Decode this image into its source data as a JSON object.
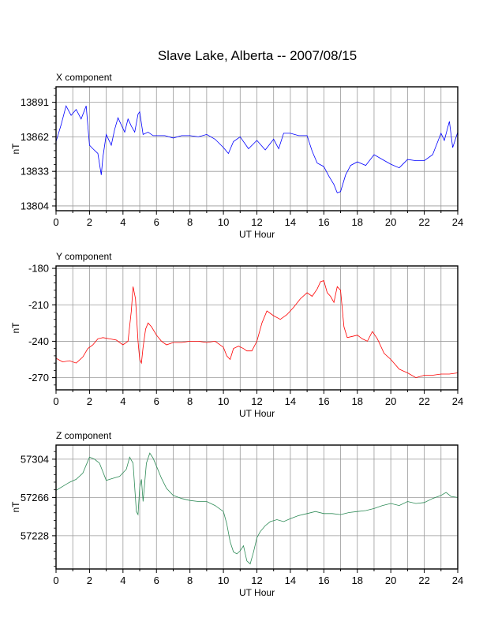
{
  "title": "Slave Lake, Alberta -- 2007/08/15",
  "chart_data": [
    {
      "type": "line",
      "panel_label": "X component",
      "xlabel": "UT Hour",
      "ylabel": "nT",
      "xlim": [
        0,
        24
      ],
      "ylim": [
        13800,
        13904
      ],
      "x_ticks": [
        0,
        2,
        4,
        6,
        8,
        10,
        12,
        14,
        16,
        18,
        20,
        22,
        24
      ],
      "y_ticks": [
        13804,
        13833,
        13862,
        13891
      ],
      "grid": true,
      "color": "#0000ff",
      "x": [
        0,
        0.3,
        0.6,
        0.9,
        1.2,
        1.5,
        1.8,
        2.0,
        2.2,
        2.5,
        2.7,
        2.8,
        3.0,
        3.3,
        3.5,
        3.7,
        3.9,
        4.1,
        4.3,
        4.5,
        4.7,
        4.9,
        5.0,
        5.2,
        5.5,
        5.8,
        6.0,
        6.5,
        7.0,
        7.5,
        8.0,
        8.5,
        9.0,
        9.5,
        10.0,
        10.3,
        10.6,
        11.0,
        11.5,
        12.0,
        12.5,
        13.0,
        13.3,
        13.6,
        14.0,
        14.5,
        15.0,
        15.3,
        15.6,
        16.0,
        16.3,
        16.6,
        16.8,
        17.0,
        17.3,
        17.6,
        18.0,
        18.5,
        19.0,
        19.5,
        20.0,
        20.5,
        21.0,
        21.5,
        22.0,
        22.5,
        23.0,
        23.2,
        23.5,
        23.7,
        24.0
      ],
      "values": [
        13858,
        13872,
        13888,
        13880,
        13885,
        13877,
        13888,
        13855,
        13852,
        13848,
        13830,
        13845,
        13864,
        13855,
        13868,
        13878,
        13872,
        13866,
        13877,
        13871,
        13866,
        13881,
        13883,
        13864,
        13866,
        13863,
        13863,
        13863,
        13861,
        13863,
        13863,
        13862,
        13864,
        13860,
        13853,
        13848,
        13858,
        13862,
        13852,
        13859,
        13851,
        13860,
        13852,
        13865,
        13865,
        13863,
        13863,
        13850,
        13840,
        13837,
        13829,
        13822,
        13815,
        13816,
        13830,
        13838,
        13841,
        13838,
        13847,
        13843,
        13839,
        13836,
        13843,
        13842,
        13842,
        13847,
        13865,
        13859,
        13875,
        13853,
        13866
      ]
    },
    {
      "type": "line",
      "panel_label": "Y component",
      "xlabel": "UT Hour",
      "ylabel": "nT",
      "xlim": [
        0,
        24
      ],
      "ylim": [
        -280,
        -178
      ],
      "x_ticks": [
        0,
        2,
        4,
        6,
        8,
        10,
        12,
        14,
        16,
        18,
        20,
        22,
        24
      ],
      "y_ticks": [
        -180,
        -210,
        -240,
        -270
      ],
      "grid": true,
      "color": "#ff0000",
      "x": [
        0,
        0.4,
        0.8,
        1.2,
        1.6,
        1.9,
        2.2,
        2.5,
        2.8,
        3.2,
        3.6,
        4.0,
        4.3,
        4.5,
        4.6,
        4.75,
        4.9,
        5.0,
        5.1,
        5.2,
        5.35,
        5.5,
        5.7,
        6.0,
        6.3,
        6.6,
        7.0,
        7.5,
        8.0,
        8.5,
        9.0,
        9.5,
        10.0,
        10.2,
        10.4,
        10.6,
        10.9,
        11.2,
        11.4,
        11.7,
        12.0,
        12.3,
        12.6,
        13.0,
        13.4,
        13.8,
        14.2,
        14.6,
        15.0,
        15.3,
        15.6,
        15.8,
        16.0,
        16.2,
        16.4,
        16.6,
        16.8,
        17.0,
        17.2,
        17.4,
        17.7,
        18.0,
        18.3,
        18.6,
        18.9,
        19.2,
        19.6,
        20.0,
        20.5,
        21.0,
        21.5,
        22.0,
        22.5,
        23.0,
        23.5,
        24.0
      ],
      "values": [
        -254,
        -257,
        -256,
        -258,
        -253,
        -246,
        -243,
        -238,
        -237,
        -238,
        -239,
        -243,
        -240,
        -215,
        -195,
        -205,
        -240,
        -255,
        -258,
        -245,
        -230,
        -225,
        -228,
        -235,
        -240,
        -243,
        -241,
        -241,
        -240,
        -240,
        -241,
        -240,
        -245,
        -252,
        -255,
        -246,
        -244,
        -246,
        -248,
        -248,
        -240,
        -225,
        -215,
        -219,
        -222,
        -218,
        -212,
        -205,
        -200,
        -203,
        -197,
        -191,
        -190,
        -200,
        -203,
        -208,
        -195,
        -198,
        -228,
        -237,
        -236,
        -235,
        -238,
        -240,
        -232,
        -238,
        -250,
        -255,
        -263,
        -266,
        -270,
        -268,
        -268,
        -267,
        -267,
        -266
      ]
    },
    {
      "type": "line",
      "panel_label": "Z component",
      "xlabel": "UT Hour",
      "ylabel": "nT",
      "xlim": [
        0,
        24
      ],
      "ylim": [
        57195,
        57318
      ],
      "x_ticks": [
        0,
        2,
        4,
        6,
        8,
        10,
        12,
        14,
        16,
        18,
        20,
        22,
        24
      ],
      "y_ticks": [
        57228,
        57266,
        57304
      ],
      "grid": true,
      "color": "#2e8b57",
      "x": [
        0,
        0.4,
        0.8,
        1.2,
        1.6,
        2.0,
        2.3,
        2.6,
        3.0,
        3.4,
        3.8,
        4.2,
        4.4,
        4.6,
        4.8,
        4.9,
        5.0,
        5.1,
        5.2,
        5.4,
        5.6,
        5.8,
        6.0,
        6.3,
        6.6,
        7.0,
        7.5,
        8.0,
        8.5,
        9.0,
        9.5,
        10.0,
        10.2,
        10.4,
        10.6,
        10.8,
        11.0,
        11.2,
        11.4,
        11.6,
        11.8,
        12.0,
        12.2,
        12.5,
        12.8,
        13.2,
        13.6,
        14.0,
        14.5,
        15.0,
        15.5,
        16.0,
        16.5,
        17.0,
        17.5,
        18.0,
        18.5,
        19.0,
        19.5,
        20.0,
        20.5,
        21.0,
        21.5,
        22.0,
        22.5,
        23.0,
        23.3,
        23.6,
        24.0
      ],
      "values": [
        57273,
        57277,
        57281,
        57284,
        57290,
        57306,
        57304,
        57300,
        57283,
        57285,
        57287,
        57294,
        57306,
        57300,
        57252,
        57249,
        57276,
        57284,
        57262,
        57300,
        57310,
        57305,
        57297,
        57285,
        57275,
        57268,
        57265,
        57263,
        57262,
        57262,
        57258,
        57252,
        57240,
        57222,
        57212,
        57210,
        57213,
        57218,
        57203,
        57200,
        57212,
        57226,
        57232,
        57238,
        57242,
        57244,
        57242,
        57245,
        57248,
        57250,
        57252,
        57250,
        57250,
        57249,
        57251,
        57252,
        57253,
        57255,
        57258,
        57260,
        57258,
        57262,
        57260,
        57261,
        57265,
        57268,
        57271,
        57267,
        57266
      ]
    }
  ]
}
